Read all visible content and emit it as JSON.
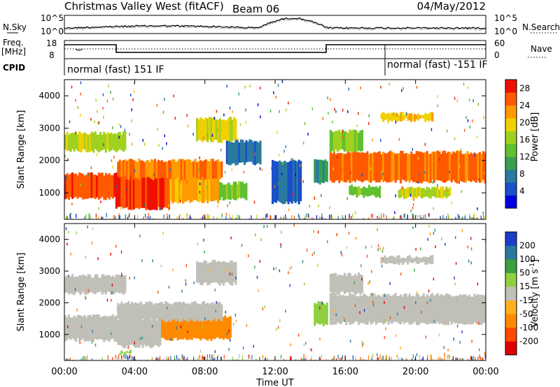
{
  "header": {
    "station": "Christmas Valley West (fitACF)",
    "beam": "Beam 06",
    "date": "04/May/2012"
  },
  "top_panel": {
    "left_label": "N.Sky",
    "right_label": "N.Search",
    "left_ticks": [
      "10^5",
      "10^0"
    ],
    "right_ticks": [
      "10^5",
      "10^0"
    ]
  },
  "freq_panel": {
    "left_label_line1": "Freq.",
    "left_label_line2": "[MHz]",
    "left_ticks": [
      "18",
      "8"
    ],
    "right_ticks": [
      "60",
      "0"
    ],
    "right_label": "Nave"
  },
  "cpid_panel": {
    "label": "CPID",
    "mode_1": "normal (fast) 151 IF",
    "mode_2": "normal (fast) -151 IF"
  },
  "time_axis": {
    "label": "Time UT",
    "ticks": [
      "00:00",
      "04:00",
      "08:00",
      "12:00",
      "16:00",
      "20:00",
      "00:00"
    ]
  },
  "chart_data": [
    {
      "type": "heatmap",
      "name": "power",
      "ylabel": "Slant Range [km]",
      "yticks": [
        1000,
        2000,
        3000,
        4000
      ],
      "ylim": [
        180,
        4500
      ],
      "xlim_hours": [
        0,
        24
      ],
      "colorbar": {
        "label": "Power [dB]",
        "ticks": [
          4,
          8,
          12,
          16,
          20,
          24,
          28
        ],
        "range": [
          0,
          30
        ],
        "colors": [
          "#0000e0",
          "#1a50c8",
          "#2a7aa0",
          "#3aa050",
          "#60c030",
          "#a0d020",
          "#f0d000",
          "#ff9a00",
          "#ff5a00",
          "#f01000"
        ]
      },
      "bands": [
        {
          "t0": 0.0,
          "t1": 2.9,
          "r0": 820,
          "r1": 1580,
          "v": 26
        },
        {
          "t0": 2.9,
          "t1": 6.0,
          "r0": 520,
          "r1": 1580,
          "v": 27
        },
        {
          "t0": 6.0,
          "t1": 8.8,
          "r0": 720,
          "r1": 1520,
          "v": 22
        },
        {
          "t0": 8.8,
          "t1": 10.4,
          "r0": 820,
          "r1": 1300,
          "v": 14
        },
        {
          "t0": 3.0,
          "t1": 9.0,
          "r0": 1450,
          "r1": 2000,
          "v": 24
        },
        {
          "t0": 0.0,
          "t1": 3.5,
          "r0": 2300,
          "r1": 2850,
          "v": 17
        },
        {
          "t0": 7.5,
          "t1": 9.8,
          "r0": 2600,
          "r1": 3300,
          "v": 19
        },
        {
          "t0": 9.2,
          "t1": 11.2,
          "r0": 1900,
          "r1": 2600,
          "v": 7
        },
        {
          "t0": 11.8,
          "t1": 13.5,
          "r0": 700,
          "r1": 2000,
          "v": 5
        },
        {
          "t0": 14.2,
          "t1": 15.0,
          "r0": 1300,
          "r1": 2000,
          "v": 9
        },
        {
          "t0": 15.1,
          "t1": 24.0,
          "r0": 1350,
          "r1": 2250,
          "v": 25
        },
        {
          "t0": 15.1,
          "t1": 17.0,
          "r0": 2300,
          "r1": 2900,
          "v": 15
        },
        {
          "t0": 16.2,
          "t1": 18.0,
          "r0": 900,
          "r1": 1200,
          "v": 14
        },
        {
          "t0": 19.0,
          "t1": 22.0,
          "r0": 850,
          "r1": 1150,
          "v": 17
        },
        {
          "t0": 18.0,
          "t1": 21.0,
          "r0": 3250,
          "r1": 3450,
          "v": 20
        }
      ]
    },
    {
      "type": "heatmap",
      "name": "velocity",
      "ylabel": "Slant Range [km]",
      "yticks": [
        1000,
        2000,
        3000,
        4000
      ],
      "ylim": [
        180,
        4500
      ],
      "xlim_hours": [
        0,
        24
      ],
      "colorbar": {
        "label": "Velocity [m s^-1]",
        "ticks": [
          200,
          100,
          50,
          15,
          -15,
          -50,
          -100,
          -200
        ],
        "range": [
          -250,
          250
        ],
        "colors": [
          "#e00000",
          "#ff4a00",
          "#ff8a00",
          "#ffb020",
          "#c0c0b8",
          "#8ed040",
          "#3aa040",
          "#2a7aa0",
          "#1a3ec8"
        ]
      },
      "bands": [
        {
          "t0": 0.0,
          "t1": 3.0,
          "r0": 820,
          "r1": 1580,
          "v": 0
        },
        {
          "t0": 3.0,
          "t1": 5.5,
          "r0": 620,
          "r1": 1500,
          "v": 0
        },
        {
          "t0": 5.5,
          "t1": 9.5,
          "r0": 850,
          "r1": 1550,
          "v": -55
        },
        {
          "t0": 3.0,
          "t1": 9.0,
          "r0": 1450,
          "r1": 2000,
          "v": 0
        },
        {
          "t0": 0.0,
          "t1": 3.5,
          "r0": 2300,
          "r1": 2850,
          "v": 0
        },
        {
          "t0": 7.5,
          "t1": 9.8,
          "r0": 2600,
          "r1": 3300,
          "v": 0
        },
        {
          "t0": 14.2,
          "t1": 15.0,
          "r0": 1300,
          "r1": 2000,
          "v": 45
        },
        {
          "t0": 15.1,
          "t1": 24.0,
          "r0": 1350,
          "r1": 2250,
          "v": 0
        },
        {
          "t0": 15.1,
          "t1": 17.0,
          "r0": 2300,
          "r1": 2900,
          "v": 0
        },
        {
          "t0": 18.0,
          "t1": 21.0,
          "r0": 3250,
          "r1": 3450,
          "v": 0
        },
        {
          "t0": 3.1,
          "t1": 3.8,
          "r0": 380,
          "r1": 460,
          "v": 30
        }
      ]
    }
  ]
}
